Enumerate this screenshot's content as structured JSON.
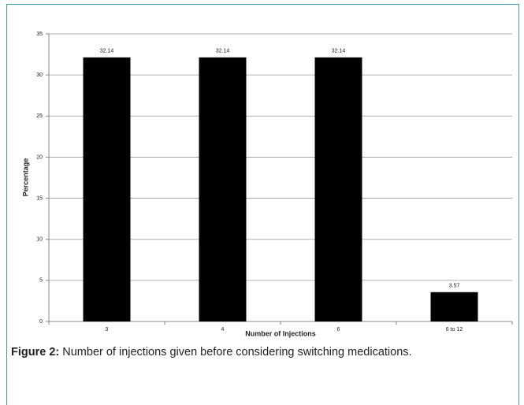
{
  "chart_data": {
    "type": "bar",
    "categories": [
      "3",
      "4",
      "6",
      "6 to 12"
    ],
    "values": [
      32.14,
      32.14,
      32.14,
      3.57
    ],
    "color": "#000000",
    "ylim": [
      0,
      35
    ],
    "yticks": [
      0,
      5,
      10,
      15,
      20,
      25,
      30,
      35
    ],
    "grid": true,
    "x_label": "Number of Injections",
    "y_label": "Percentage"
  },
  "caption": {
    "label": "Figure 2:",
    "text": "Number of injections given before considering switching medications."
  }
}
